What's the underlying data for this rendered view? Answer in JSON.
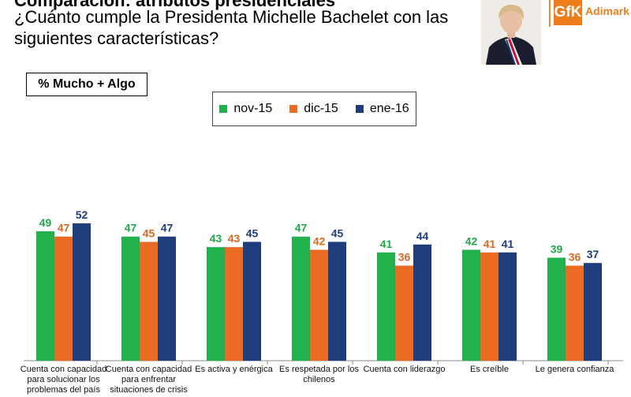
{
  "header": {
    "title_cut": "Comparación: atributos presidenciales",
    "question": "¿Cuánto cumple la Presidenta Michelle Bachelet con las siguientes características?"
  },
  "logo": {
    "mark": "GfK",
    "text": "Adimark"
  },
  "measure_label": "% Mucho + Algo",
  "colors": {
    "nov-15": "#22b14c",
    "dic-15": "#e96b23",
    "ene-16": "#1f3d7a"
  },
  "chart_data": {
    "type": "bar",
    "categories": [
      "Cuenta con capacidad para solucionar los problemas del país",
      "Cuenta con capacidad para enfrentar situaciones de crisis",
      "Es activa y enérgica",
      "Es respetada por los chilenos",
      "Cuenta con liderazgo",
      "Es creíble",
      "Le genera confianza"
    ],
    "series": [
      {
        "name": "nov-15",
        "values": [
          49,
          47,
          43,
          47,
          41,
          42,
          39
        ]
      },
      {
        "name": "dic-15",
        "values": [
          47,
          45,
          43,
          42,
          36,
          41,
          36
        ]
      },
      {
        "name": "ene-16",
        "values": [
          52,
          47,
          45,
          45,
          44,
          41,
          37
        ]
      }
    ],
    "ylim": [
      0,
      52
    ],
    "legend_position": "top-center",
    "grid": false
  }
}
